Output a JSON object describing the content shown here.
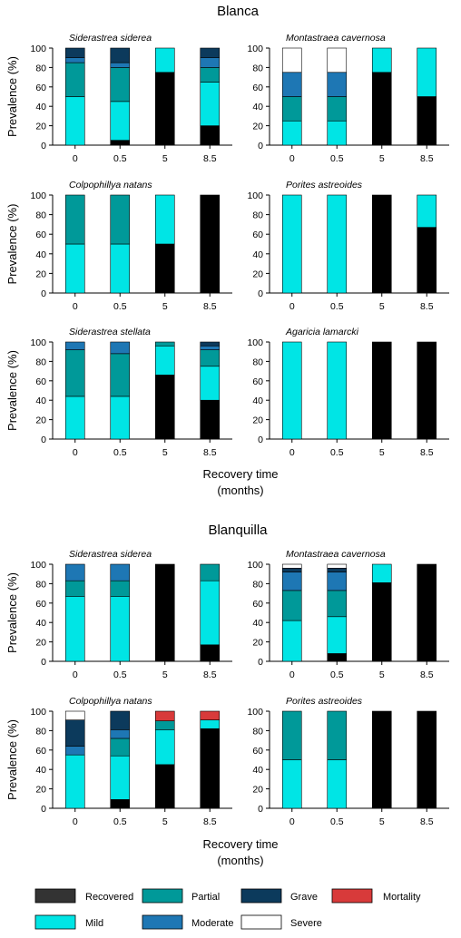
{
  "colors": {
    "Recovered": "#000000",
    "Mild": "#00e5e5",
    "Partial": "#009999",
    "Moderate": "#1e77b4",
    "Grave": "#0c3a5c",
    "Severe": "#ffffff",
    "Mortality": "#d83a3a"
  },
  "legend": {
    "items": [
      {
        "label": "Recovered",
        "key": "Recovered",
        "swatch": "#333333"
      },
      {
        "label": "Partial",
        "key": "Partial",
        "swatch": "#009999"
      },
      {
        "label": "Grave",
        "key": "Grave",
        "swatch": "#0c3a5c"
      },
      {
        "label": "Mortality",
        "key": "Mortality",
        "swatch": "#d83a3a"
      },
      {
        "label": "Mild",
        "key": "Mild",
        "swatch": "#00e5e5"
      },
      {
        "label": "Moderate",
        "key": "Moderate",
        "swatch": "#1e77b4"
      },
      {
        "label": "Severe",
        "key": "Severe",
        "swatch": "#ffffff"
      }
    ]
  },
  "sections": [
    {
      "title": "Blanca",
      "xlabel_line1": "Recovery time",
      "xlabel_line2": "(months)"
    },
    {
      "title": "Blanquilla",
      "xlabel_line1": "Recovery time",
      "xlabel_line2": "(months)"
    }
  ],
  "chart_data": [
    {
      "type": "bar",
      "stacked": true,
      "section": "Blanca",
      "title": "Siderastrea siderea",
      "ylabel": "Prevalence (%)",
      "ylim": [
        0,
        100
      ],
      "categories": [
        "0",
        "0.5",
        "5",
        "8.5"
      ],
      "series": [
        {
          "name": "Recovered",
          "values": [
            0,
            5,
            75,
            20
          ]
        },
        {
          "name": "Mild",
          "values": [
            50,
            40,
            25,
            45
          ]
        },
        {
          "name": "Partial",
          "values": [
            35,
            35,
            0,
            15
          ]
        },
        {
          "name": "Moderate",
          "values": [
            5,
            5,
            0,
            10
          ]
        },
        {
          "name": "Grave",
          "values": [
            10,
            15,
            0,
            10
          ]
        },
        {
          "name": "Severe",
          "values": [
            0,
            0,
            0,
            0
          ]
        },
        {
          "name": "Mortality",
          "values": [
            0,
            0,
            0,
            0
          ]
        }
      ]
    },
    {
      "type": "bar",
      "stacked": true,
      "section": "Blanca",
      "title": "Montastraea cavernosa",
      "ylabel": "",
      "ylim": [
        0,
        100
      ],
      "categories": [
        "0",
        "0.5",
        "5",
        "8.5"
      ],
      "series": [
        {
          "name": "Recovered",
          "values": [
            0,
            0,
            75,
            50
          ]
        },
        {
          "name": "Mild",
          "values": [
            25,
            25,
            25,
            50
          ]
        },
        {
          "name": "Partial",
          "values": [
            25,
            25,
            0,
            0
          ]
        },
        {
          "name": "Moderate",
          "values": [
            25,
            25,
            0,
            0
          ]
        },
        {
          "name": "Grave",
          "values": [
            0,
            0,
            0,
            0
          ]
        },
        {
          "name": "Severe",
          "values": [
            25,
            25,
            0,
            0
          ]
        },
        {
          "name": "Mortality",
          "values": [
            0,
            0,
            0,
            0
          ]
        }
      ]
    },
    {
      "type": "bar",
      "stacked": true,
      "section": "Blanca",
      "title": "Colpophillya natans",
      "ylabel": "Prevalence (%)",
      "ylim": [
        0,
        100
      ],
      "categories": [
        "0",
        "0.5",
        "5",
        "8.5"
      ],
      "series": [
        {
          "name": "Recovered",
          "values": [
            0,
            0,
            50,
            100
          ]
        },
        {
          "name": "Mild",
          "values": [
            50,
            50,
            50,
            0
          ]
        },
        {
          "name": "Partial",
          "values": [
            50,
            50,
            0,
            0
          ]
        },
        {
          "name": "Moderate",
          "values": [
            0,
            0,
            0,
            0
          ]
        },
        {
          "name": "Grave",
          "values": [
            0,
            0,
            0,
            0
          ]
        },
        {
          "name": "Severe",
          "values": [
            0,
            0,
            0,
            0
          ]
        },
        {
          "name": "Mortality",
          "values": [
            0,
            0,
            0,
            0
          ]
        }
      ]
    },
    {
      "type": "bar",
      "stacked": true,
      "section": "Blanca",
      "title": "Porites astreoides",
      "ylabel": "",
      "ylim": [
        0,
        100
      ],
      "categories": [
        "0",
        "0.5",
        "5",
        "8.5"
      ],
      "series": [
        {
          "name": "Recovered",
          "values": [
            0,
            0,
            100,
            67
          ]
        },
        {
          "name": "Mild",
          "values": [
            100,
            100,
            0,
            33
          ]
        },
        {
          "name": "Partial",
          "values": [
            0,
            0,
            0,
            0
          ]
        },
        {
          "name": "Moderate",
          "values": [
            0,
            0,
            0,
            0
          ]
        },
        {
          "name": "Grave",
          "values": [
            0,
            0,
            0,
            0
          ]
        },
        {
          "name": "Severe",
          "values": [
            0,
            0,
            0,
            0
          ]
        },
        {
          "name": "Mortality",
          "values": [
            0,
            0,
            0,
            0
          ]
        }
      ]
    },
    {
      "type": "bar",
      "stacked": true,
      "section": "Blanca",
      "title": "Siderastrea stellata",
      "ylabel": "Prevalence (%)",
      "ylim": [
        0,
        100
      ],
      "categories": [
        "0",
        "0.5",
        "5",
        "8.5"
      ],
      "series": [
        {
          "name": "Recovered",
          "values": [
            0,
            0,
            66,
            40
          ]
        },
        {
          "name": "Mild",
          "values": [
            44,
            44,
            30,
            35
          ]
        },
        {
          "name": "Partial",
          "values": [
            48,
            44,
            4,
            17
          ]
        },
        {
          "name": "Moderate",
          "values": [
            8,
            12,
            0,
            4
          ]
        },
        {
          "name": "Grave",
          "values": [
            0,
            0,
            0,
            4
          ]
        },
        {
          "name": "Severe",
          "values": [
            0,
            0,
            0,
            0
          ]
        },
        {
          "name": "Mortality",
          "values": [
            0,
            0,
            0,
            0
          ]
        }
      ]
    },
    {
      "type": "bar",
      "stacked": true,
      "section": "Blanca",
      "title": "Agaricia lamarcki",
      "ylabel": "",
      "ylim": [
        0,
        100
      ],
      "categories": [
        "0",
        "0.5",
        "5",
        "8.5"
      ],
      "series": [
        {
          "name": "Recovered",
          "values": [
            0,
            0,
            100,
            100
          ]
        },
        {
          "name": "Mild",
          "values": [
            100,
            100,
            0,
            0
          ]
        },
        {
          "name": "Partial",
          "values": [
            0,
            0,
            0,
            0
          ]
        },
        {
          "name": "Moderate",
          "values": [
            0,
            0,
            0,
            0
          ]
        },
        {
          "name": "Grave",
          "values": [
            0,
            0,
            0,
            0
          ]
        },
        {
          "name": "Severe",
          "values": [
            0,
            0,
            0,
            0
          ]
        },
        {
          "name": "Mortality",
          "values": [
            0,
            0,
            0,
            0
          ]
        }
      ]
    },
    {
      "type": "bar",
      "stacked": true,
      "section": "Blanquilla",
      "title": "Siderastrea siderea",
      "ylabel": "Prevalence (%)",
      "ylim": [
        0,
        100
      ],
      "categories": [
        "0",
        "0.5",
        "5",
        "8.5"
      ],
      "series": [
        {
          "name": "Recovered",
          "values": [
            0,
            0,
            100,
            17
          ]
        },
        {
          "name": "Mild",
          "values": [
            67,
            67,
            0,
            66
          ]
        },
        {
          "name": "Partial",
          "values": [
            16,
            16,
            0,
            17
          ]
        },
        {
          "name": "Moderate",
          "values": [
            17,
            17,
            0,
            0
          ]
        },
        {
          "name": "Grave",
          "values": [
            0,
            0,
            0,
            0
          ]
        },
        {
          "name": "Severe",
          "values": [
            0,
            0,
            0,
            0
          ]
        },
        {
          "name": "Mortality",
          "values": [
            0,
            0,
            0,
            0
          ]
        }
      ]
    },
    {
      "type": "bar",
      "stacked": true,
      "section": "Blanquilla",
      "title": "Montastraea cavernosa",
      "ylabel": "",
      "ylim": [
        0,
        100
      ],
      "categories": [
        "0",
        "0.5",
        "5",
        "8.5"
      ],
      "series": [
        {
          "name": "Recovered",
          "values": [
            0,
            8,
            81,
            100
          ]
        },
        {
          "name": "Mild",
          "values": [
            42,
            38,
            19,
            0
          ]
        },
        {
          "name": "Partial",
          "values": [
            31,
            27,
            0,
            0
          ]
        },
        {
          "name": "Moderate",
          "values": [
            19,
            19,
            0,
            0
          ]
        },
        {
          "name": "Grave",
          "values": [
            4,
            4,
            0,
            0
          ]
        },
        {
          "name": "Severe",
          "values": [
            4,
            4,
            0,
            0
          ]
        },
        {
          "name": "Mortality",
          "values": [
            0,
            0,
            0,
            0
          ]
        }
      ]
    },
    {
      "type": "bar",
      "stacked": true,
      "section": "Blanquilla",
      "title": "Colpophillya natans",
      "ylabel": "Prevalence (%)",
      "ylim": [
        0,
        100
      ],
      "categories": [
        "0",
        "0.5",
        "5",
        "8.5"
      ],
      "series": [
        {
          "name": "Recovered",
          "values": [
            0,
            9,
            45,
            82
          ]
        },
        {
          "name": "Mild",
          "values": [
            55,
            45,
            36,
            9
          ]
        },
        {
          "name": "Partial",
          "values": [
            0,
            18,
            9,
            0
          ]
        },
        {
          "name": "Moderate",
          "values": [
            9,
            9,
            0,
            0
          ]
        },
        {
          "name": "Grave",
          "values": [
            27,
            19,
            0,
            0
          ]
        },
        {
          "name": "Severe",
          "values": [
            9,
            0,
            0,
            0
          ]
        },
        {
          "name": "Mortality",
          "values": [
            0,
            0,
            10,
            9
          ]
        }
      ]
    },
    {
      "type": "bar",
      "stacked": true,
      "section": "Blanquilla",
      "title": "Porites astreoides",
      "ylabel": "",
      "ylim": [
        0,
        100
      ],
      "categories": [
        "0",
        "0.5",
        "5",
        "8.5"
      ],
      "series": [
        {
          "name": "Recovered",
          "values": [
            0,
            0,
            100,
            100
          ]
        },
        {
          "name": "Mild",
          "values": [
            50,
            50,
            0,
            0
          ]
        },
        {
          "name": "Partial",
          "values": [
            50,
            50,
            0,
            0
          ]
        },
        {
          "name": "Moderate",
          "values": [
            0,
            0,
            0,
            0
          ]
        },
        {
          "name": "Grave",
          "values": [
            0,
            0,
            0,
            0
          ]
        },
        {
          "name": "Severe",
          "values": [
            0,
            0,
            0,
            0
          ]
        },
        {
          "name": "Mortality",
          "values": [
            0,
            0,
            0,
            0
          ]
        }
      ]
    }
  ]
}
